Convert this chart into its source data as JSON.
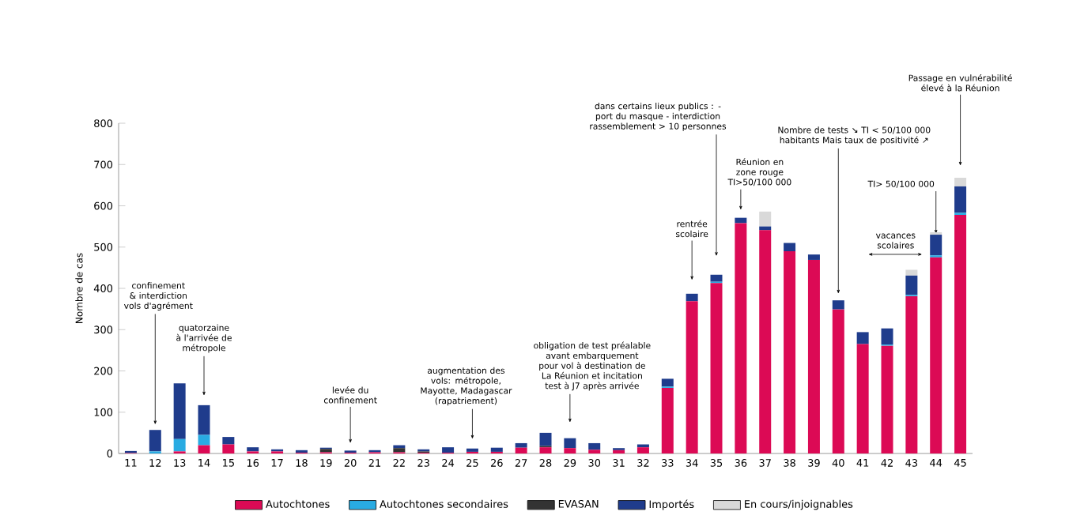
{
  "chart_data": {
    "type": "bar",
    "stacked": true,
    "ylabel": "Nombre de cas",
    "categories": [
      "11",
      "12",
      "13",
      "14",
      "15",
      "16",
      "17",
      "18",
      "19",
      "20",
      "21",
      "22",
      "23",
      "24",
      "25",
      "26",
      "27",
      "28",
      "29",
      "30",
      "31",
      "32",
      "33",
      "34",
      "35",
      "36",
      "37",
      "38",
      "39",
      "40",
      "41",
      "42",
      "43",
      "44",
      "45"
    ],
    "series": [
      {
        "name": "Autochtones",
        "color": "#dc0a55",
        "values": [
          1,
          0,
          5,
          20,
          22,
          5,
          5,
          2,
          3,
          2,
          3,
          3,
          2,
          2,
          4,
          4,
          14,
          15,
          13,
          9,
          8,
          15,
          159,
          369,
          413,
          558,
          541,
          490,
          469,
          349,
          265,
          261,
          381,
          475,
          578
        ]
      },
      {
        "name": "Autochtones secondaires",
        "color": "#29abe2",
        "values": [
          0,
          5,
          30,
          25,
          0,
          0,
          0,
          0,
          0,
          0,
          0,
          0,
          0,
          0,
          0,
          0,
          0,
          0,
          0,
          0,
          0,
          0,
          3,
          0,
          3,
          0,
          0,
          0,
          0,
          0,
          0,
          3,
          3,
          5,
          5
        ]
      },
      {
        "name": "EVASAN",
        "color": "#333333",
        "values": [
          0,
          0,
          0,
          0,
          0,
          0,
          0,
          0,
          8,
          0,
          0,
          10,
          3,
          0,
          0,
          0,
          0,
          3,
          0,
          0,
          0,
          0,
          0,
          0,
          0,
          0,
          0,
          0,
          0,
          0,
          0,
          0,
          0,
          0,
          0
        ]
      },
      {
        "name": "Importés",
        "color": "#1f3c8c",
        "values": [
          5,
          52,
          135,
          72,
          18,
          10,
          5,
          6,
          3,
          5,
          5,
          7,
          5,
          13,
          8,
          10,
          11,
          32,
          24,
          16,
          5,
          7,
          19,
          18,
          17,
          13,
          9,
          20,
          13,
          22,
          29,
          39,
          47,
          50,
          64
        ]
      },
      {
        "name": "En cours/injoignables",
        "color": "#d9d9d9",
        "values": [
          0,
          0,
          0,
          0,
          0,
          0,
          0,
          0,
          0,
          0,
          0,
          0,
          0,
          0,
          0,
          0,
          0,
          0,
          0,
          0,
          0,
          0,
          0,
          0,
          0,
          0,
          36,
          0,
          0,
          0,
          0,
          0,
          14,
          6,
          21
        ]
      }
    ],
    "ylim": [
      0,
      800
    ],
    "yticks": [
      0,
      100,
      200,
      300,
      400,
      500,
      600,
      700,
      800
    ],
    "legend": "bottom",
    "annotations": [
      {
        "text": "confinement & interdiction vols d'agrément",
        "x": "12",
        "y": 70
      },
      {
        "text": "quatorzaine à l'arrivée de métropole",
        "x": "14",
        "y": 140
      },
      {
        "text": "levée du confinement",
        "x": "20",
        "y": 25
      },
      {
        "text": "augmentation des vols: métropole, Mayotte, Madagascar (rapatriement)",
        "x": "25",
        "y": 35
      },
      {
        "text": "obligation de test préalable avant embarquement pour vol à destination de La Réunion et incitation test à J7 après arrivée",
        "x": "29",
        "y": 75
      },
      {
        "text": "rentrée scolaire",
        "x": "34",
        "y": 420
      },
      {
        "text": "dans certains lieux publics : - port du masque - interdiction rassemblement > 10 personnes",
        "x": "35",
        "y": 478
      },
      {
        "text": "Réunion en zone rouge TI>50/100 000",
        "x": "36",
        "y": 590
      },
      {
        "text": "Nombre de tests ↘ TI < 50/100 000 habitants Mais taux de positivité ↗",
        "x": "40",
        "y": 387
      },
      {
        "text": "TI> 50/100 000",
        "x": "44",
        "y": 532
      },
      {
        "text": "Passage en vulnérabilité élevé à la Réunion",
        "x": "45",
        "y": 697
      },
      "vacances scolaires"
    ]
  }
}
